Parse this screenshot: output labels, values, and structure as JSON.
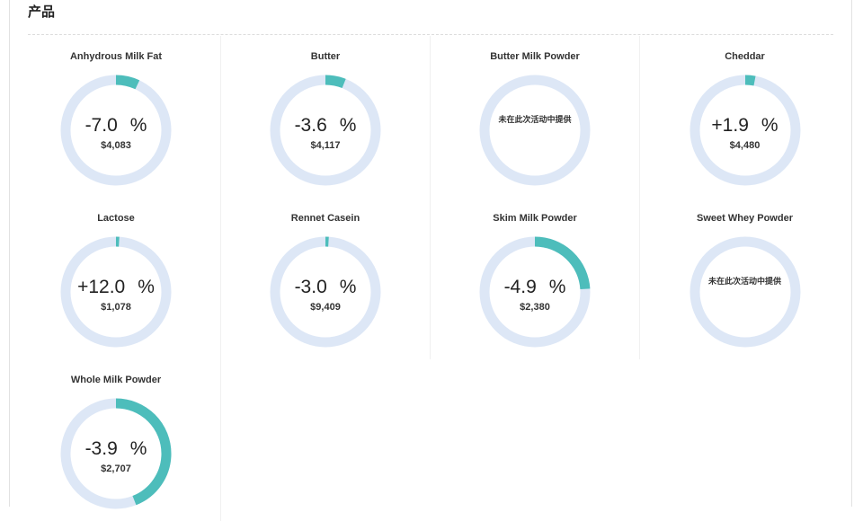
{
  "section": {
    "title": "产品"
  },
  "colors": {
    "track": "#dde7f6",
    "accent": "#4dbdbb"
  },
  "products": [
    {
      "name": "Anhydrous Milk Fat",
      "change": "-7.0",
      "pct_sign": "%",
      "price": "$4,083",
      "fill": 0.07,
      "available": true
    },
    {
      "name": "Butter",
      "change": "-3.6",
      "pct_sign": "%",
      "price": "$4,117",
      "fill": 0.06,
      "available": true
    },
    {
      "name": "Butter Milk Powder",
      "available": false,
      "note": "未在此次活动中提供"
    },
    {
      "name": "Cheddar",
      "change": "+1.9",
      "pct_sign": "%",
      "price": "$4,480",
      "fill": 0.03,
      "available": true
    },
    {
      "name": "Lactose",
      "change": "+12.0",
      "pct_sign": "%",
      "price": "$1,078",
      "fill": 0.01,
      "available": true
    },
    {
      "name": "Rennet Casein",
      "change": "-3.0",
      "pct_sign": "%",
      "price": "$9,409",
      "fill": 0.01,
      "available": true
    },
    {
      "name": "Skim Milk Powder",
      "change": "-4.9",
      "pct_sign": "%",
      "price": "$2,380",
      "fill": 0.24,
      "available": true
    },
    {
      "name": "Sweet Whey Powder",
      "available": false,
      "note": "未在此次活动中提供"
    },
    {
      "name": "Whole Milk Powder",
      "change": "-3.9",
      "pct_sign": "%",
      "price": "$2,707",
      "fill": 0.44,
      "available": true
    }
  ]
}
